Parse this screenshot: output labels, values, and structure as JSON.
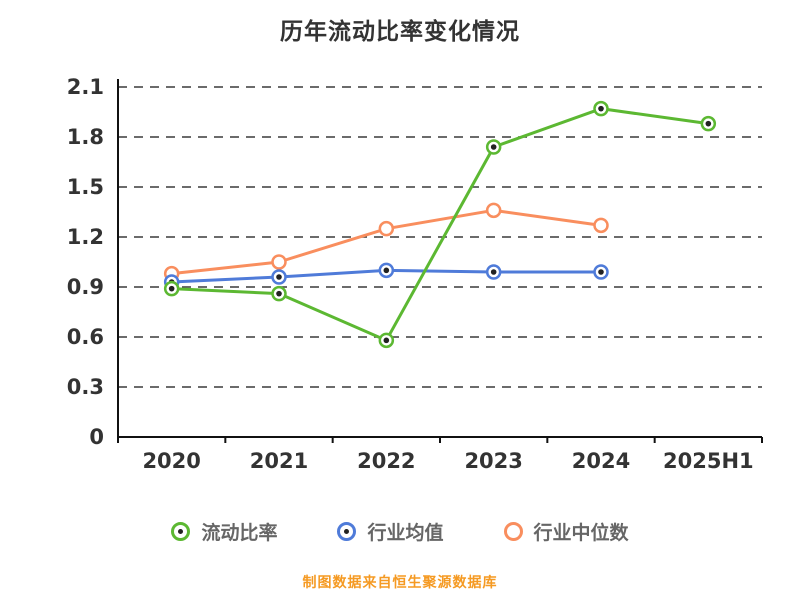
{
  "title": "历年流动比率变化情况",
  "footer": "制图数据来自恒生聚源数据库",
  "chart_data": {
    "type": "line",
    "categories": [
      "2020",
      "2021",
      "2022",
      "2023",
      "2024",
      "2025H1"
    ],
    "series": [
      {
        "name": "流动比率",
        "color": "#5cb832",
        "inner_dot": true,
        "values": [
          0.89,
          0.86,
          0.58,
          1.74,
          1.97,
          1.88
        ]
      },
      {
        "name": "行业均值",
        "color": "#4f7bd9",
        "inner_dot": true,
        "values": [
          0.93,
          0.96,
          1.0,
          0.99,
          0.99,
          null
        ]
      },
      {
        "name": "行业中位数",
        "color": "#f98e5e",
        "inner_dot": false,
        "values": [
          0.98,
          1.05,
          1.25,
          1.36,
          1.27,
          null
        ]
      }
    ],
    "ylim": [
      0,
      2.1
    ],
    "yticks": [
      0,
      0.3,
      0.6,
      0.9,
      1.2,
      1.5,
      1.8,
      2.1
    ],
    "grid": "dashed",
    "legend_position": "bottom",
    "axis_color": "#111111",
    "grid_color": "#3a3a3a",
    "tick_label_color": "#333333"
  }
}
